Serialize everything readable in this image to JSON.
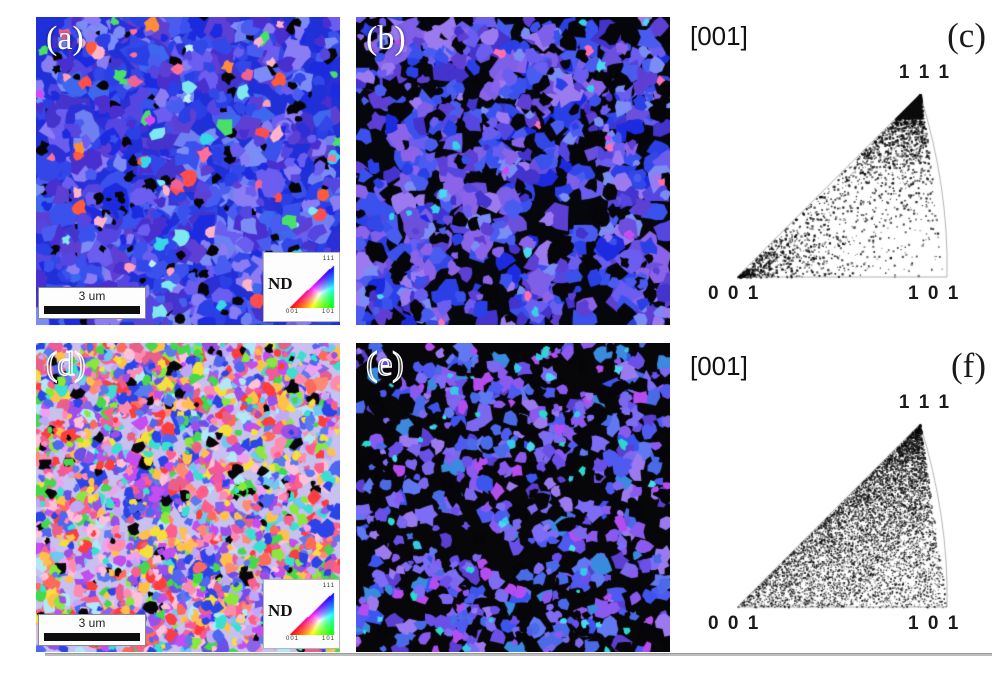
{
  "panels": {
    "a": {
      "label": "(a)",
      "scalebar_label": "3 um",
      "legend": {
        "title": "ND",
        "corner_top": "111",
        "corner_bottom_left": "001",
        "corner_bottom_right": "101"
      }
    },
    "b": {
      "label": "(b)"
    },
    "c": {
      "direction_label": "[001]",
      "label": "(c)",
      "corner_top": "1 1 1",
      "corner_bottom_left": "0 0 1",
      "corner_bottom_right": "1 0 1"
    },
    "d": {
      "label": "(d)",
      "scalebar_label": "3 um",
      "legend": {
        "title": "ND",
        "corner_top": "111",
        "corner_bottom_left": "001",
        "corner_bottom_right": "101"
      }
    },
    "e": {
      "label": "(e)"
    },
    "f": {
      "direction_label": "[001]",
      "label": "(f)",
      "corner_top": "1 1 1",
      "corner_bottom_left": "0 0 1",
      "corner_bottom_right": "1 0 1"
    }
  },
  "render": {
    "map_a": {
      "seed": 101,
      "background": "#2030d8",
      "layers": [
        {
          "colors": [
            "#1c2be0",
            "#2b3fe6",
            "#3a51ee",
            "#2d2fd6",
            "#4a5cf0",
            "#5546e2",
            "#6a5df0",
            "#4433cc",
            "#7b8cf6",
            "#5d3fd3",
            "#3347e8",
            "#8a7cf4",
            "#6f7ff2",
            "#4a2fd0",
            "#3e66ee"
          ],
          "count": 520,
          "rmin": 6,
          "rmax": 15
        },
        {
          "colors": [
            "#050505"
          ],
          "count": 95,
          "rmin": 2.5,
          "rmax": 7.5
        },
        {
          "colors": [
            "#1c2be0",
            "#2b3fe6",
            "#3a51ee",
            "#4a5cf0",
            "#5546e2",
            "#6a5df0",
            "#7b8cf6",
            "#5d3fd3",
            "#3347e8",
            "#8a7cf4",
            "#4a2fd0"
          ],
          "count": 260,
          "rmin": 4,
          "rmax": 9
        },
        {
          "colors": [
            "#ff4d4d",
            "#ff7096",
            "#ff8c3a",
            "#ffb3c9",
            "#35d7e8",
            "#7ee8f0",
            "#49e06a",
            "#e040fb",
            "#ffa0b8",
            "#ff5a3c",
            "#c0f0ee",
            "#f06292"
          ],
          "count": 80,
          "rmin": 3.5,
          "rmax": 7.5
        }
      ]
    },
    "map_b": {
      "seed": 202,
      "background": "#06070c",
      "layers": [
        {
          "colors": [
            "#1c2be0",
            "#2b3fe6",
            "#3a51ee",
            "#4a5cf0",
            "#5546e2",
            "#6a5df0",
            "#4433cc",
            "#7b8cf6",
            "#5d3fd3",
            "#8a63e8",
            "#9b7af0",
            "#7d5fe8",
            "#6a50dd",
            "#3347e8"
          ],
          "count": 430,
          "rmin": 6,
          "rmax": 14
        },
        {
          "colors": [
            "#05050a"
          ],
          "count": 110,
          "rmin": 4,
          "rmax": 11
        },
        {
          "colors": [
            "#2b3fe6",
            "#3a51ee",
            "#4a5cf0",
            "#6a5df0",
            "#7b8cf6",
            "#8a63e8",
            "#9b7af0",
            "#5d3fd3",
            "#4433cc"
          ],
          "count": 230,
          "rmin": 3.5,
          "rmax": 8.5
        },
        {
          "colors": [
            "#35d0e8",
            "#c44df0",
            "#ff6eb0",
            "#49d8f0"
          ],
          "count": 24,
          "rmin": 3,
          "rmax": 5.5
        }
      ]
    },
    "map_d": {
      "seed": 303,
      "background": "#c8c0ee",
      "layers": [
        {
          "colors": [
            "#2b44e8",
            "#4f66f0",
            "#ff5e8a",
            "#e8608a",
            "#6a50e8",
            "#3a51ee"
          ],
          "count": 32,
          "rmin": 10,
          "rmax": 17
        },
        {
          "colors": [
            "#ff5e8a",
            "#ff8ab0",
            "#f05a9a",
            "#ff3d3d",
            "#ff8a70",
            "#ffc04a",
            "#f5e03a",
            "#44d84a",
            "#8ae83a",
            "#39e0d0",
            "#6ec8f0",
            "#2b44e8",
            "#4f66f0",
            "#6a50e8",
            "#9b4fe8",
            "#c44df0",
            "#8a63e8",
            "#c0a8f8",
            "#ffc0d8",
            "#f0a0f0",
            "#5a7af0",
            "#e8608a",
            "#b0e8f8",
            "#ff6a5a"
          ],
          "count": 1250,
          "rmin": 3,
          "rmax": 8
        },
        {
          "colors": [
            "#070707"
          ],
          "count": 85,
          "rmin": 2.5,
          "rmax": 7
        },
        {
          "colors": [
            "#ff5e8a",
            "#ff8ab0",
            "#ff3d3d",
            "#ffc04a",
            "#f5e03a",
            "#44d84a",
            "#39e0d0",
            "#2b44e8",
            "#4f66f0",
            "#9b4fe8",
            "#c44df0",
            "#c0a8f8",
            "#ffc0d8",
            "#5a7af0",
            "#e8608a",
            "#8ae83a"
          ],
          "count": 520,
          "rmin": 2.5,
          "rmax": 6
        }
      ]
    },
    "map_e": {
      "seed": 404,
      "background": "#070608",
      "layers": [
        {
          "colors": [
            "#4f5af0",
            "#6a50e8",
            "#7b68ee",
            "#3c55ee",
            "#9b7af0",
            "#7d6cf4",
            "#5a3fd0",
            "#4a6ae8",
            "#8a5af0",
            "#3a8ae0",
            "#6078f2"
          ],
          "count": 300,
          "rmin": 4.5,
          "rmax": 10
        },
        {
          "colors": [
            "#060509"
          ],
          "count": 130,
          "rmin": 4,
          "rmax": 10
        },
        {
          "colors": [
            "#4f5af0",
            "#6a50e8",
            "#7b68ee",
            "#9b7af0",
            "#7d6cf4",
            "#8a5af0",
            "#b44df0",
            "#4a6ae8"
          ],
          "count": 240,
          "rmin": 3,
          "rmax": 7.5
        },
        {
          "colors": [
            "#35c8e8",
            "#49d8f0",
            "#2ad8d0"
          ],
          "count": 45,
          "rmin": 2,
          "rmax": 5
        }
      ]
    },
    "ipf_c": {
      "seed": 505,
      "tri": [
        [
          52,
          190
        ],
        [
          262,
          190
        ],
        [
          235,
          7
        ]
      ],
      "ctrl": [
        264,
        100
      ],
      "count": 3200,
      "base": 0.1,
      "pull": 2.8,
      "dotmin": 0.9,
      "dotmax": 2.4,
      "clusters": [
        {
          "corner": "A",
          "count": 480,
          "spread": 0.6
        },
        {
          "corner": "C",
          "count": 900,
          "spread": 0.5
        }
      ],
      "edge": {
        "count": 380,
        "spread": 0.55
      },
      "apex_cap": 0.14
    },
    "ipf_f": {
      "seed": 606,
      "tri": [
        [
          52,
          190
        ],
        [
          262,
          190
        ],
        [
          235,
          7
        ]
      ],
      "ctrl": [
        264,
        100
      ],
      "count": 9000,
      "base": 0.35,
      "pull": 1.0,
      "dotmin": 0.7,
      "dotmax": 1.8,
      "clusters": [
        {
          "corner": "C",
          "count": 900,
          "spread": 0.55
        }
      ],
      "edge": {
        "count": 1800,
        "spread": 0.5
      },
      "apex_cap": 0
    },
    "ipf_key": {
      "gamma": 0.75
    }
  }
}
